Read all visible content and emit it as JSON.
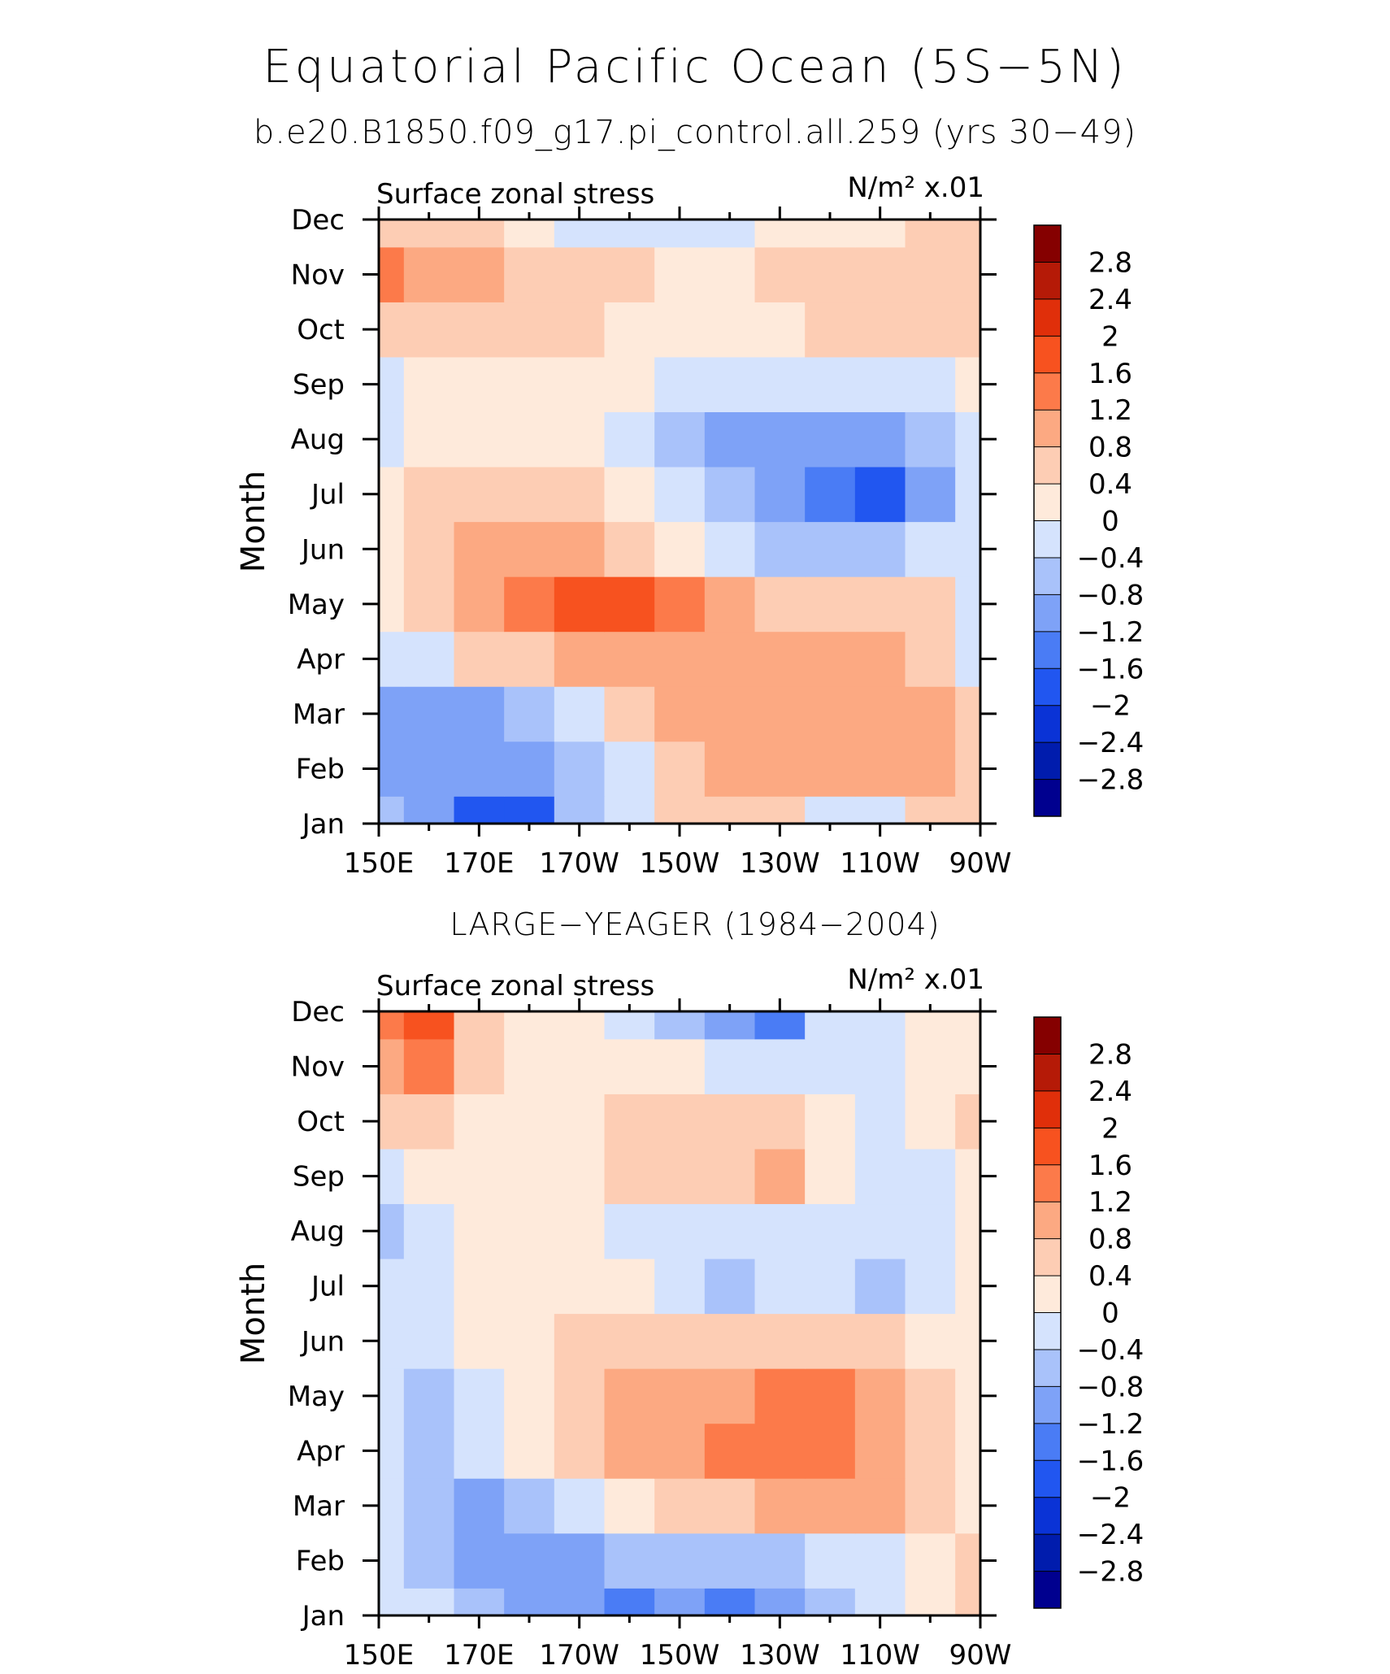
{
  "title": "Equatorial Pacific Ocean (5S−5N)",
  "subtitle": "b.e20.B1850.f09_g17.pi_control.all.259 (yrs 30−49)",
  "chart_data": [
    {
      "type": "heatmap",
      "panel_title": "",
      "left_label": "Surface zonal stress",
      "right_label": "N/m² x.01",
      "ylabel": "Month",
      "xlabel": "",
      "x_ticks": [
        "150E",
        "170E",
        "170W",
        "150W",
        "130W",
        "110W",
        "90W"
      ],
      "x_values_lon": [
        150,
        170,
        190,
        210,
        230,
        250,
        270
      ],
      "y_ticks": [
        "Jan",
        "Feb",
        "Mar",
        "Apr",
        "May",
        "Jun",
        "Jul",
        "Aug",
        "Sep",
        "Oct",
        "Nov",
        "Dec"
      ],
      "z": [
        [
          -0.8,
          -1.2,
          -2.0,
          -2.0,
          -0.8,
          -0.4,
          0.4,
          0.4,
          0.4,
          -0.4,
          -0.4,
          0.4,
          0.4
        ],
        [
          -1.2,
          -1.2,
          -1.2,
          -1.2,
          -0.8,
          -0.4,
          0.4,
          0.8,
          0.8,
          0.8,
          0.8,
          0.8,
          0.4
        ],
        [
          -1.2,
          -1.2,
          -1.2,
          -0.8,
          -0.4,
          0.4,
          0.8,
          0.8,
          0.8,
          0.8,
          0.8,
          0.8,
          0.4
        ],
        [
          -0.4,
          -0.4,
          0.4,
          0.4,
          0.8,
          0.8,
          0.8,
          0.8,
          0.8,
          0.8,
          0.8,
          0.4,
          -0.4
        ],
        [
          0.0,
          0.4,
          0.8,
          1.2,
          1.6,
          1.6,
          1.2,
          0.8,
          0.4,
          0.4,
          0.4,
          0.4,
          -0.4
        ],
        [
          0.0,
          0.4,
          0.8,
          0.8,
          0.8,
          0.4,
          0.0,
          -0.4,
          -0.8,
          -0.8,
          -0.8,
          -0.4,
          -0.4
        ],
        [
          0.0,
          0.4,
          0.4,
          0.4,
          0.4,
          0.0,
          -0.4,
          -0.8,
          -1.2,
          -1.6,
          -2.0,
          -1.2,
          -0.4
        ],
        [
          -0.4,
          0.0,
          0.0,
          0.0,
          0.0,
          -0.4,
          -0.8,
          -1.2,
          -1.2,
          -1.2,
          -1.2,
          -0.8,
          -0.4
        ],
        [
          -0.4,
          0.0,
          0.0,
          0.0,
          0.0,
          0.0,
          -0.4,
          -0.4,
          -0.4,
          -0.4,
          -0.4,
          -0.4,
          0.0
        ],
        [
          0.4,
          0.4,
          0.4,
          0.4,
          0.4,
          0.0,
          0.0,
          0.0,
          0.0,
          0.4,
          0.4,
          0.4,
          0.4
        ],
        [
          1.2,
          0.8,
          0.8,
          0.4,
          0.4,
          0.4,
          0.0,
          0.0,
          0.4,
          0.4,
          0.4,
          0.4,
          0.4
        ],
        [
          0.4,
          0.4,
          0.4,
          0.0,
          -0.4,
          -0.4,
          -0.4,
          -0.4,
          0.0,
          0.0,
          0.0,
          0.4,
          0.4
        ]
      ],
      "colorbar_labels": [
        "2.8",
        "2.4",
        "2",
        "1.6",
        "1.2",
        "0.8",
        "0.4",
        "0",
        "−0.4",
        "−0.8",
        "−1.2",
        "−1.6",
        "−2",
        "−2.4",
        "−2.8"
      ],
      "levels": [
        -2.8,
        -2.4,
        -2.0,
        -1.6,
        -1.2,
        -0.8,
        -0.4,
        0.0,
        0.4,
        0.8,
        1.2,
        1.6,
        2.0,
        2.4,
        2.8
      ],
      "colors": [
        "#00008f",
        "#001cad",
        "#0a33d6",
        "#2156f0",
        "#4a7cf5",
        "#7ea2f7",
        "#a9c2fa",
        "#d5e3fd",
        "#feeadb",
        "#fdcdb4",
        "#fca982",
        "#fc7a4a",
        "#f7521f",
        "#e02f0a",
        "#b51a07",
        "#850000"
      ]
    },
    {
      "type": "heatmap",
      "panel_title": "LARGE−YEAGER (1984−2004)",
      "left_label": "Surface zonal stress",
      "right_label": "N/m² x.01",
      "ylabel": "Month",
      "xlabel": "",
      "x_ticks": [
        "150E",
        "170E",
        "170W",
        "150W",
        "130W",
        "110W",
        "90W"
      ],
      "x_values_lon": [
        150,
        170,
        190,
        210,
        230,
        250,
        270
      ],
      "y_ticks": [
        "Jan",
        "Feb",
        "Mar",
        "Apr",
        "May",
        "Jun",
        "Jul",
        "Aug",
        "Sep",
        "Oct",
        "Nov",
        "Dec"
      ],
      "z": [
        [
          -0.4,
          -0.4,
          -0.8,
          -1.2,
          -1.2,
          -1.6,
          -1.2,
          -1.6,
          -1.2,
          -0.8,
          -0.4,
          0.0,
          0.4
        ],
        [
          -0.4,
          -0.8,
          -1.2,
          -1.2,
          -1.2,
          -0.8,
          -0.8,
          -0.8,
          -0.8,
          -0.4,
          -0.4,
          0.0,
          0.4
        ],
        [
          -0.4,
          -0.8,
          -1.2,
          -0.8,
          -0.4,
          0.0,
          0.4,
          0.4,
          0.8,
          0.8,
          0.8,
          0.4,
          0.0
        ],
        [
          -0.4,
          -0.8,
          -0.4,
          0.0,
          0.4,
          0.8,
          0.8,
          1.2,
          1.2,
          1.2,
          0.8,
          0.4,
          0.0
        ],
        [
          -0.4,
          -0.8,
          -0.4,
          0.0,
          0.4,
          0.8,
          0.8,
          0.8,
          1.2,
          1.2,
          0.8,
          0.4,
          0.0
        ],
        [
          -0.4,
          -0.4,
          0.0,
          0.0,
          0.4,
          0.4,
          0.4,
          0.4,
          0.4,
          0.4,
          0.4,
          0.0,
          0.0
        ],
        [
          -0.4,
          -0.4,
          0.0,
          0.0,
          0.0,
          0.0,
          -0.4,
          -0.8,
          -0.4,
          -0.4,
          -0.8,
          -0.4,
          0.0
        ],
        [
          -0.8,
          -0.4,
          0.0,
          0.0,
          0.0,
          -0.4,
          -0.4,
          -0.4,
          -0.4,
          -0.4,
          -0.4,
          -0.4,
          0.0
        ],
        [
          -0.4,
          0.0,
          0.0,
          0.0,
          0.0,
          0.4,
          0.4,
          0.4,
          0.8,
          0.0,
          -0.4,
          -0.4,
          0.0
        ],
        [
          0.4,
          0.4,
          0.0,
          0.0,
          0.0,
          0.4,
          0.4,
          0.4,
          0.4,
          0.0,
          -0.4,
          0.0,
          0.4
        ],
        [
          0.8,
          1.2,
          0.4,
          0.0,
          0.0,
          0.0,
          0.0,
          -0.4,
          -0.4,
          -0.4,
          -0.4,
          0.0,
          0.0
        ],
        [
          1.2,
          1.6,
          0.4,
          0.0,
          0.0,
          -0.4,
          -0.8,
          -1.2,
          -1.6,
          -0.4,
          -0.4,
          0.0,
          0.0
        ]
      ],
      "colorbar_labels": [
        "2.8",
        "2.4",
        "2",
        "1.6",
        "1.2",
        "0.8",
        "0.4",
        "0",
        "−0.4",
        "−0.8",
        "−1.2",
        "−1.6",
        "−2",
        "−2.4",
        "−2.8"
      ],
      "levels": [
        -2.8,
        -2.4,
        -2.0,
        -1.6,
        -1.2,
        -0.8,
        -0.4,
        0.0,
        0.4,
        0.8,
        1.2,
        1.6,
        2.0,
        2.4,
        2.8
      ],
      "colors": [
        "#00008f",
        "#001cad",
        "#0a33d6",
        "#2156f0",
        "#4a7cf5",
        "#7ea2f7",
        "#a9c2fa",
        "#d5e3fd",
        "#feeadb",
        "#fdcdb4",
        "#fca982",
        "#fc7a4a",
        "#f7521f",
        "#e02f0a",
        "#b51a07",
        "#850000"
      ]
    }
  ]
}
